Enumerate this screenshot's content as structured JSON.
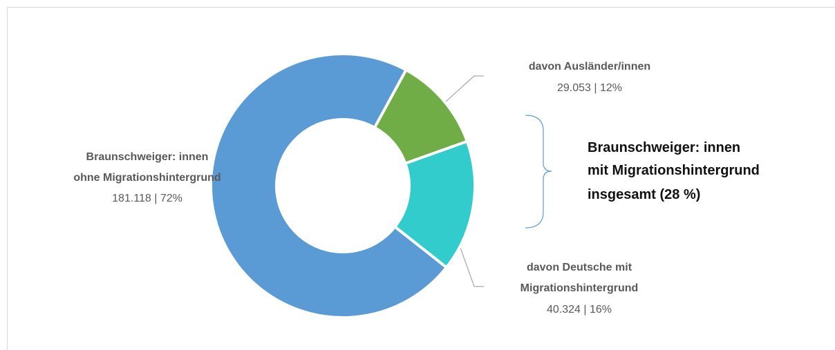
{
  "chart_data": {
    "type": "donut",
    "categories": [
      "davon Ausländer/innen",
      "davon Deutsche mit\nMigrationshintergrund",
      "Braunschweiger: innen\nohne Migrationshintergrund"
    ],
    "values": [
      29053,
      40324,
      181118
    ],
    "value_labels": [
      "29.053 | 12%",
      "40.324 | 16%",
      "181.118 | 72%"
    ],
    "colors": [
      "#70ad47",
      "#33cccc",
      "#5b9bd5"
    ],
    "annotation": "Braunschweiger: innen\nmit Migrationshintergrund\ninsgesamt (28 %)"
  }
}
